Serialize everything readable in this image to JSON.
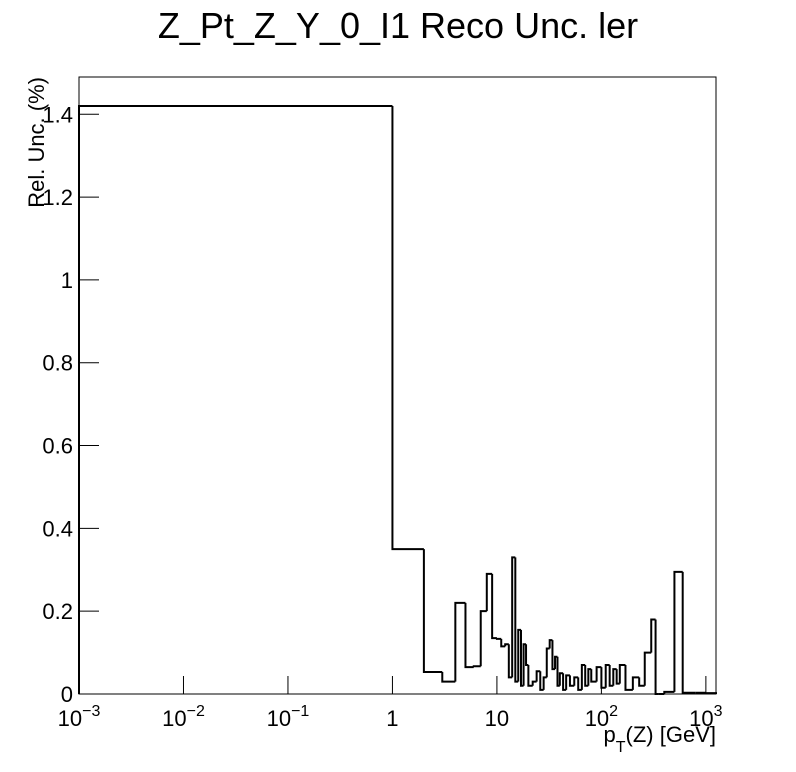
{
  "chart_data": {
    "type": "histogram",
    "title": "Z_Pt_Z_Y_0_I1 Reco Unc. ler",
    "x_label": {
      "text": "p",
      "sub": "T",
      "rest": "(Z) [GeV]"
    },
    "y_label": "Rel. Unc. (%)",
    "x_log": true,
    "color": "#000000",
    "bins": [
      0.001,
      1,
      2,
      3,
      4,
      5,
      6,
      7,
      8,
      9,
      10,
      11,
      12,
      13,
      14,
      15,
      16,
      17,
      18,
      19,
      20,
      22,
      24,
      26,
      28,
      30,
      32,
      34,
      36,
      38,
      40,
      43,
      46,
      50,
      55,
      60,
      65,
      70,
      75,
      80,
      90,
      100,
      110,
      120,
      130,
      140,
      150,
      170,
      200,
      230,
      260,
      300,
      330,
      350,
      400,
      500,
      600,
      800,
      1000,
      1250
    ],
    "values": [
      1.42,
      0.35,
      0.053,
      0.03,
      0.22,
      0.065,
      0.067,
      0.2,
      0.29,
      0.135,
      0.133,
      0.115,
      0.12,
      0.04,
      0.33,
      0.03,
      0.155,
      0.02,
      0.12,
      0.07,
      0.02,
      0.03,
      0.055,
      0.01,
      0.04,
      0.11,
      0.13,
      0.06,
      0.09,
      0.02,
      0.05,
      0.01,
      0.045,
      0.02,
      0.04,
      0.01,
      0.07,
      0.02,
      0.06,
      0.03,
      0.065,
      0.015,
      0.07,
      0.02,
      0.06,
      0.025,
      0.07,
      0.01,
      0.04,
      0.02,
      0.1,
      0.18,
      0.0,
      0.0,
      0.005,
      0.295,
      0.003,
      0.003,
      0.002
    ],
    "xlim": [
      0.001,
      1250
    ],
    "ylim": [
      0,
      1.49
    ],
    "xticks": [
      {
        "value": 0.001,
        "label": "10",
        "sup": "−3"
      },
      {
        "value": 0.01,
        "label": "10",
        "sup": "−2"
      },
      {
        "value": 0.1,
        "label": "10",
        "sup": "−1"
      },
      1,
      10,
      {
        "value": 100,
        "label": "10",
        "sup": "2"
      },
      {
        "value": 1000,
        "label": "10",
        "sup": "3"
      }
    ],
    "yticks": [
      0,
      0.2,
      0.4,
      0.6,
      0.8,
      1,
      1.2,
      1.4
    ]
  }
}
